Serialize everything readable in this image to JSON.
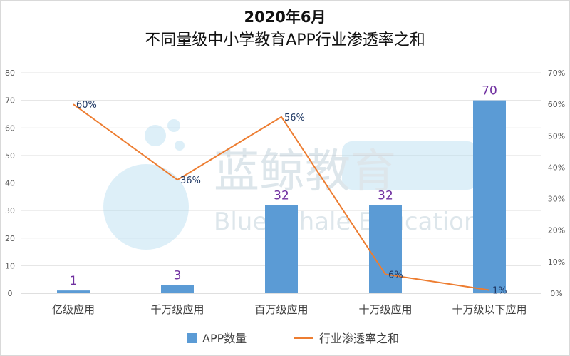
{
  "chart_data": {
    "type": "bar+line",
    "title_line1": "2020年6月",
    "title_line2": "不同量级中小学教育APP行业渗透率之和",
    "categories": [
      "亿级应用",
      "千万级应用",
      "百万级应用",
      "十万级应用",
      "十万级以下应用"
    ],
    "series": [
      {
        "name": "APP数量",
        "type": "bar",
        "axis": "left",
        "color": "#5b9bd5",
        "values": [
          1,
          3,
          32,
          32,
          70
        ],
        "labels": [
          "1",
          "3",
          "32",
          "32",
          "70"
        ]
      },
      {
        "name": "行业渗透率之和",
        "type": "line",
        "axis": "right",
        "color": "#ed7d31",
        "values": [
          60,
          36,
          56,
          6,
          1
        ],
        "labels": [
          "60%",
          "36%",
          "56%",
          "6%",
          "1%"
        ]
      }
    ],
    "y_left": {
      "min": 0,
      "max": 80,
      "step": 10,
      "ticks": [
        "0",
        "10",
        "20",
        "30",
        "40",
        "50",
        "60",
        "70",
        "80"
      ]
    },
    "y_right": {
      "min": 0,
      "max": 70,
      "step": 10,
      "ticks": [
        "0%",
        "10%",
        "20%",
        "30%",
        "40%",
        "50%",
        "60%",
        "70%"
      ]
    },
    "grid": true,
    "legend": "bottom",
    "bar_label_color": "#7030a0",
    "line_label_color": "#1f3864"
  },
  "watermark": {
    "text_cn": "蓝鲸教育",
    "text_en": "Blue Whale Education"
  }
}
